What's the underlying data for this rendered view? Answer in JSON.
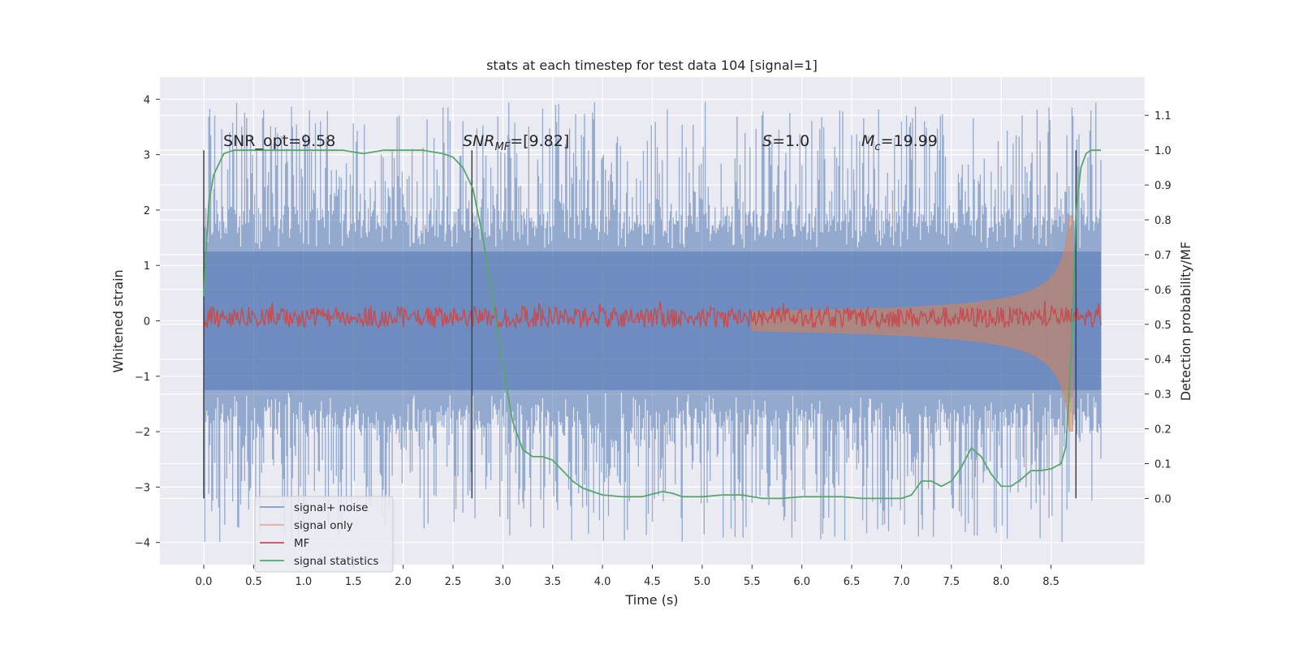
{
  "chart_data": {
    "type": "line",
    "title": "stats at each timestep for test data 104 [signal=1]",
    "xlabel": "Time (s)",
    "ylabel_left": "Whitened strain",
    "ylabel_right": "Detection probability/MF",
    "xlim": [
      -0.44,
      9.44
    ],
    "ylim_left": [
      -4.4,
      4.4
    ],
    "ylim_right": [
      -0.19,
      1.21
    ],
    "x_ticks": [
      "0.0",
      "0.5",
      "1.0",
      "1.5",
      "2.0",
      "2.5",
      "3.0",
      "3.5",
      "4.0",
      "4.5",
      "5.0",
      "5.5",
      "6.0",
      "6.5",
      "7.0",
      "7.5",
      "8.0",
      "8.5"
    ],
    "y_ticks_left": [
      "4",
      "3",
      "2",
      "1",
      "0",
      "−1",
      "−2",
      "−3",
      "−4"
    ],
    "y_ticks_right": [
      "1.1",
      "1.0",
      "0.9",
      "0.8",
      "0.7",
      "0.6",
      "0.5",
      "0.4",
      "0.3",
      "0.2",
      "0.1",
      "0.0"
    ],
    "annotations": {
      "snr_opt": "SNR_opt=9.58",
      "snr_mf_sym": "SNR",
      "snr_mf_sub": "MF",
      "snr_mf_val": "=[9.82]",
      "s_sym": "S",
      "s_val": "=1.0",
      "mc_sym": "M",
      "mc_sub": "c",
      "mc_val": "=19.99"
    },
    "vertical_markers": [
      0.0,
      2.69,
      8.75
    ],
    "colors": {
      "plot_bg": "#eaeaf2",
      "grid": "#ffffff",
      "noise": "#4c72b0",
      "signal": "#dd8452",
      "mf": "#c44e52",
      "stat": "#55a868",
      "marker": "#444444"
    },
    "series": [
      {
        "name": "signal+ noise",
        "axis": "left",
        "band": {
          "x_start": 0.0,
          "x_end": 9.0,
          "dense_amplitude": 1.25,
          "peak_max": 3.95,
          "peak_min": -4.0
        }
      },
      {
        "name": "signal only",
        "axis": "left",
        "chirp": {
          "x_start": 5.5,
          "x_end": 8.72,
          "peak": 1.9
        }
      },
      {
        "name": "MF",
        "axis": "right",
        "band": {
          "x_start": 0.0,
          "x_end": 9.0,
          "center": 0.52,
          "amplitude": 0.03
        }
      },
      {
        "name": "signal statistics",
        "axis": "right",
        "x": [
          0.0,
          0.05,
          0.1,
          0.2,
          0.3,
          0.5,
          1.0,
          1.4,
          1.6,
          1.8,
          2.0,
          2.2,
          2.4,
          2.5,
          2.6,
          2.7,
          2.8,
          2.9,
          3.0,
          3.1,
          3.2,
          3.3,
          3.4,
          3.5,
          3.6,
          3.7,
          3.8,
          4.0,
          4.2,
          4.4,
          4.6,
          4.7,
          4.8,
          5.0,
          5.2,
          5.4,
          5.6,
          5.8,
          6.0,
          6.2,
          6.4,
          6.6,
          6.8,
          7.0,
          7.1,
          7.2,
          7.3,
          7.4,
          7.5,
          7.6,
          7.7,
          7.8,
          7.9,
          8.0,
          8.1,
          8.2,
          8.3,
          8.4,
          8.5,
          8.6,
          8.65,
          8.7,
          8.75,
          8.8,
          8.85,
          8.9,
          8.95,
          9.0
        ],
        "y": [
          0.58,
          0.85,
          0.93,
          0.99,
          1.0,
          1.0,
          1.0,
          1.0,
          0.99,
          1.0,
          1.0,
          1.0,
          0.99,
          0.98,
          0.95,
          0.89,
          0.75,
          0.57,
          0.38,
          0.22,
          0.14,
          0.12,
          0.12,
          0.11,
          0.08,
          0.05,
          0.03,
          0.01,
          0.005,
          0.005,
          0.02,
          0.015,
          0.005,
          0.005,
          0.01,
          0.01,
          0.0,
          0.0,
          0.005,
          0.005,
          0.005,
          0.0,
          0.0,
          0.0,
          0.01,
          0.05,
          0.05,
          0.035,
          0.05,
          0.09,
          0.145,
          0.12,
          0.07,
          0.035,
          0.035,
          0.055,
          0.08,
          0.08,
          0.085,
          0.1,
          0.15,
          0.4,
          0.82,
          0.95,
          0.99,
          1.0,
          1.0,
          1.0
        ]
      }
    ]
  }
}
